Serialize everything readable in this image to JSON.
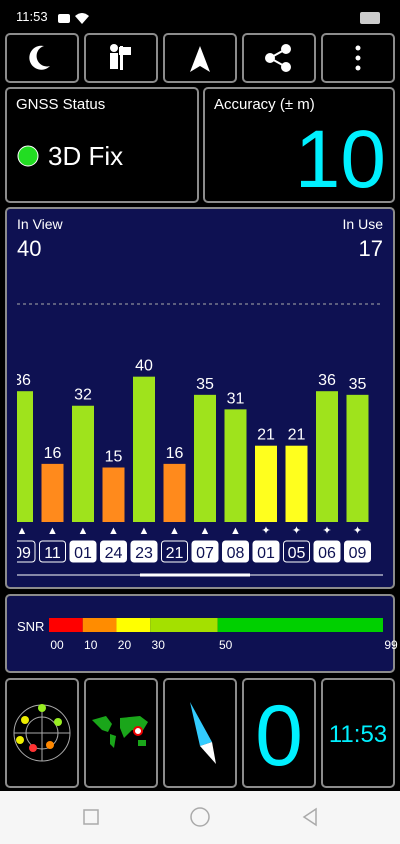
{
  "status_bar": {
    "time": "11:53"
  },
  "gnss_status": {
    "label": "GNSS Status",
    "fix": "3D Fix"
  },
  "accuracy": {
    "label": "Accuracy (± m)",
    "value": "10"
  },
  "chart_data": {
    "type": "bar",
    "in_view_label": "In View",
    "in_view": 40,
    "in_use_label": "In Use",
    "in_use": 17,
    "categories": [
      "09",
      "11",
      "01",
      "24",
      "23",
      "21",
      "07",
      "08",
      "01",
      "05",
      "06",
      "09"
    ],
    "markers": [
      "▲",
      "▲",
      "▲",
      "▲",
      "▲",
      "▲",
      "▲",
      "▲",
      "✦",
      "✦",
      "✦",
      "✦"
    ],
    "in_use_flags": [
      false,
      false,
      true,
      true,
      true,
      false,
      true,
      true,
      true,
      false,
      true,
      true
    ],
    "values": [
      36,
      16,
      32,
      15,
      40,
      16,
      35,
      31,
      21,
      21,
      36,
      35
    ],
    "colors": [
      "#9fe31c",
      "#ff8a1c",
      "#9fe31c",
      "#ff8a1c",
      "#9fe31c",
      "#ff8a1c",
      "#9fe31c",
      "#9fe31c",
      "#ffff1e",
      "#ffff1e",
      "#9fe31c",
      "#9fe31c"
    ],
    "ylim": [
      0,
      60
    ],
    "yticks": [
      60
    ],
    "grid": true
  },
  "snr_legend": {
    "label": "SNR",
    "xlim": [
      0,
      99
    ],
    "segments": [
      {
        "from": 0,
        "to": 10,
        "color": "#ff0000"
      },
      {
        "from": 10,
        "to": 20,
        "color": "#ff8c00"
      },
      {
        "from": 20,
        "to": 30,
        "color": "#ffff00"
      },
      {
        "from": 30,
        "to": 50,
        "color": "#a4e000"
      },
      {
        "from": 50,
        "to": 99,
        "color": "#00d000"
      }
    ],
    "ticks": [
      {
        "value": 0,
        "label": "00"
      },
      10,
      20,
      30,
      50,
      99
    ]
  },
  "bottom": {
    "speed": "0",
    "time": "11:53"
  }
}
